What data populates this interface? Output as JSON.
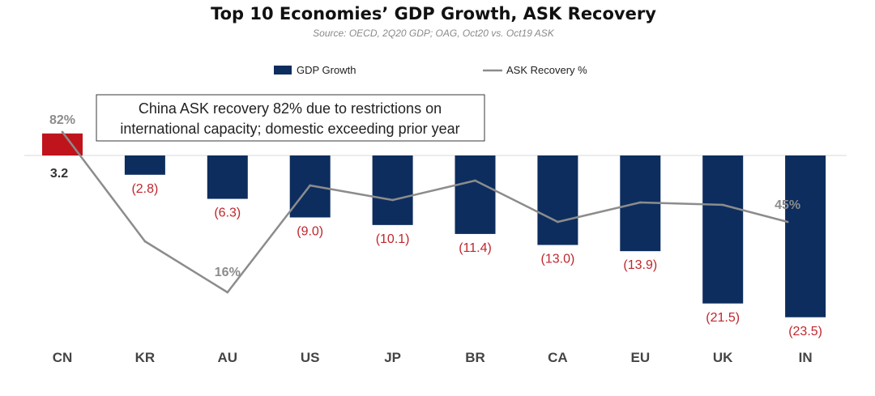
{
  "colors": {
    "gdp_bar": "#0d2d5e",
    "gdp_bar_highlight": "#c0141c",
    "ask_line": "#8c8c8c",
    "value_label": "#c0262c"
  },
  "chart_data": {
    "type": "bar",
    "title": "Top 10 Economies’ GDP Growth, ASK Recovery",
    "subtitle": "Source: OECD, 2Q20 GDP; OAG, Oct20 vs. Oct19 ASK",
    "categories": [
      "CN",
      "KR",
      "AU",
      "US",
      "JP",
      "BR",
      "CA",
      "EU",
      "UK",
      "IN"
    ],
    "series": [
      {
        "name": "GDP Growth",
        "kind": "bar",
        "values": [
          3.2,
          -2.8,
          -6.3,
          -9.0,
          -10.1,
          -11.4,
          -13.0,
          -13.9,
          -21.5,
          -23.5
        ],
        "labels": [
          "3.2",
          "(2.8)",
          "(6.3)",
          "(9.0)",
          "(10.1)",
          "(11.4)",
          "(13.0)",
          "(13.9)",
          "(21.5)",
          "(23.5)"
        ]
      },
      {
        "name": "ASK Recovery %",
        "kind": "line",
        "values": [
          82,
          37,
          16,
          60,
          54,
          62,
          45,
          53,
          52,
          45
        ],
        "labeled_points": [
          {
            "index": 0,
            "label": "82%"
          },
          {
            "index": 2,
            "label": "16%"
          },
          {
            "index": 9,
            "label": "45%"
          }
        ]
      }
    ],
    "legend": [
      "GDP Growth",
      "ASK Recovery %"
    ],
    "legend_position": "top",
    "annotation": {
      "lines": [
        "China ASK recovery 82% due to restrictions on",
        "international capacity; domestic exceeding prior year"
      ]
    },
    "gdp_axis_range": [
      -25,
      4
    ],
    "ask_axis_range": [
      0,
      100
    ]
  }
}
